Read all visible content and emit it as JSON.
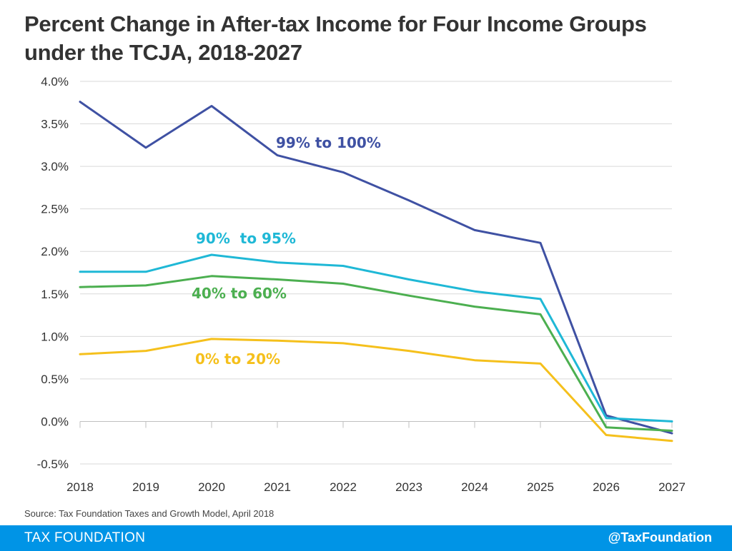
{
  "title_line1": "Percent Change in After-tax Income for Four Income Groups",
  "title_line2": "under the TCJA, 2018-2027",
  "source": "Source: Tax Foundation Taxes and Growth Model, April 2018",
  "footer": {
    "brand": "TAX FOUNDATION",
    "handle": "@TaxFoundation",
    "color": "#0094e6"
  },
  "chart_data": {
    "type": "line",
    "title": "Percent Change in After-tax Income for Four Income Groups under the TCJA, 2018-2027",
    "xlabel": "",
    "ylabel": "",
    "x": [
      "2018",
      "2019",
      "2020",
      "2021",
      "2022",
      "2023",
      "2024",
      "2025",
      "2026",
      "2027"
    ],
    "ylim": [
      -0.5,
      4.0
    ],
    "yticks": [
      "-0.5%",
      "0.0%",
      "0.5%",
      "1.0%",
      "1.5%",
      "2.0%",
      "2.5%",
      "3.0%",
      "3.5%",
      "4.0%"
    ],
    "ytick_values": [
      -0.5,
      0.0,
      0.5,
      1.0,
      1.5,
      2.0,
      2.5,
      3.0,
      3.5,
      4.0
    ],
    "grid": "horizontal",
    "series": [
      {
        "name": "99% to 100%",
        "color": "#3f51a3",
        "values": [
          3.76,
          3.22,
          3.71,
          3.13,
          2.93,
          2.6,
          2.25,
          2.1,
          0.07,
          -0.14
        ]
      },
      {
        "name": "90%  to 95%",
        "color": "#1fb8d6",
        "values": [
          1.76,
          1.76,
          1.96,
          1.87,
          1.83,
          1.67,
          1.53,
          1.44,
          0.04,
          0.0
        ]
      },
      {
        "name": "40% to 60%",
        "color": "#4caf50",
        "values": [
          1.58,
          1.6,
          1.71,
          1.67,
          1.62,
          1.48,
          1.35,
          1.26,
          -0.07,
          -0.11
        ]
      },
      {
        "name": "0% to 20%",
        "color": "#f5c01c",
        "values": [
          0.79,
          0.83,
          0.97,
          0.95,
          0.92,
          0.83,
          0.72,
          0.68,
          -0.16,
          -0.23
        ]
      }
    ]
  }
}
